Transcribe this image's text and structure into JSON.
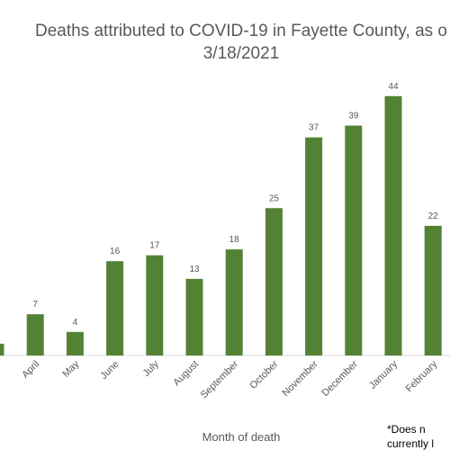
{
  "chart_data": {
    "type": "bar",
    "title": "Deaths attributed to COVID-19 in Fayette County, as o",
    "subtitle": "3/18/2021",
    "x_label": "Month of death",
    "footnote": [
      "*Does n",
      "currently l"
    ],
    "categories": [
      null,
      "April",
      "May",
      "June",
      "July",
      "August",
      "September",
      "October",
      "November",
      "December",
      "January",
      "February"
    ],
    "values": [
      2,
      7,
      4,
      16,
      17,
      13,
      18,
      25,
      37,
      39,
      44,
      22
    ],
    "color": "#548235"
  }
}
